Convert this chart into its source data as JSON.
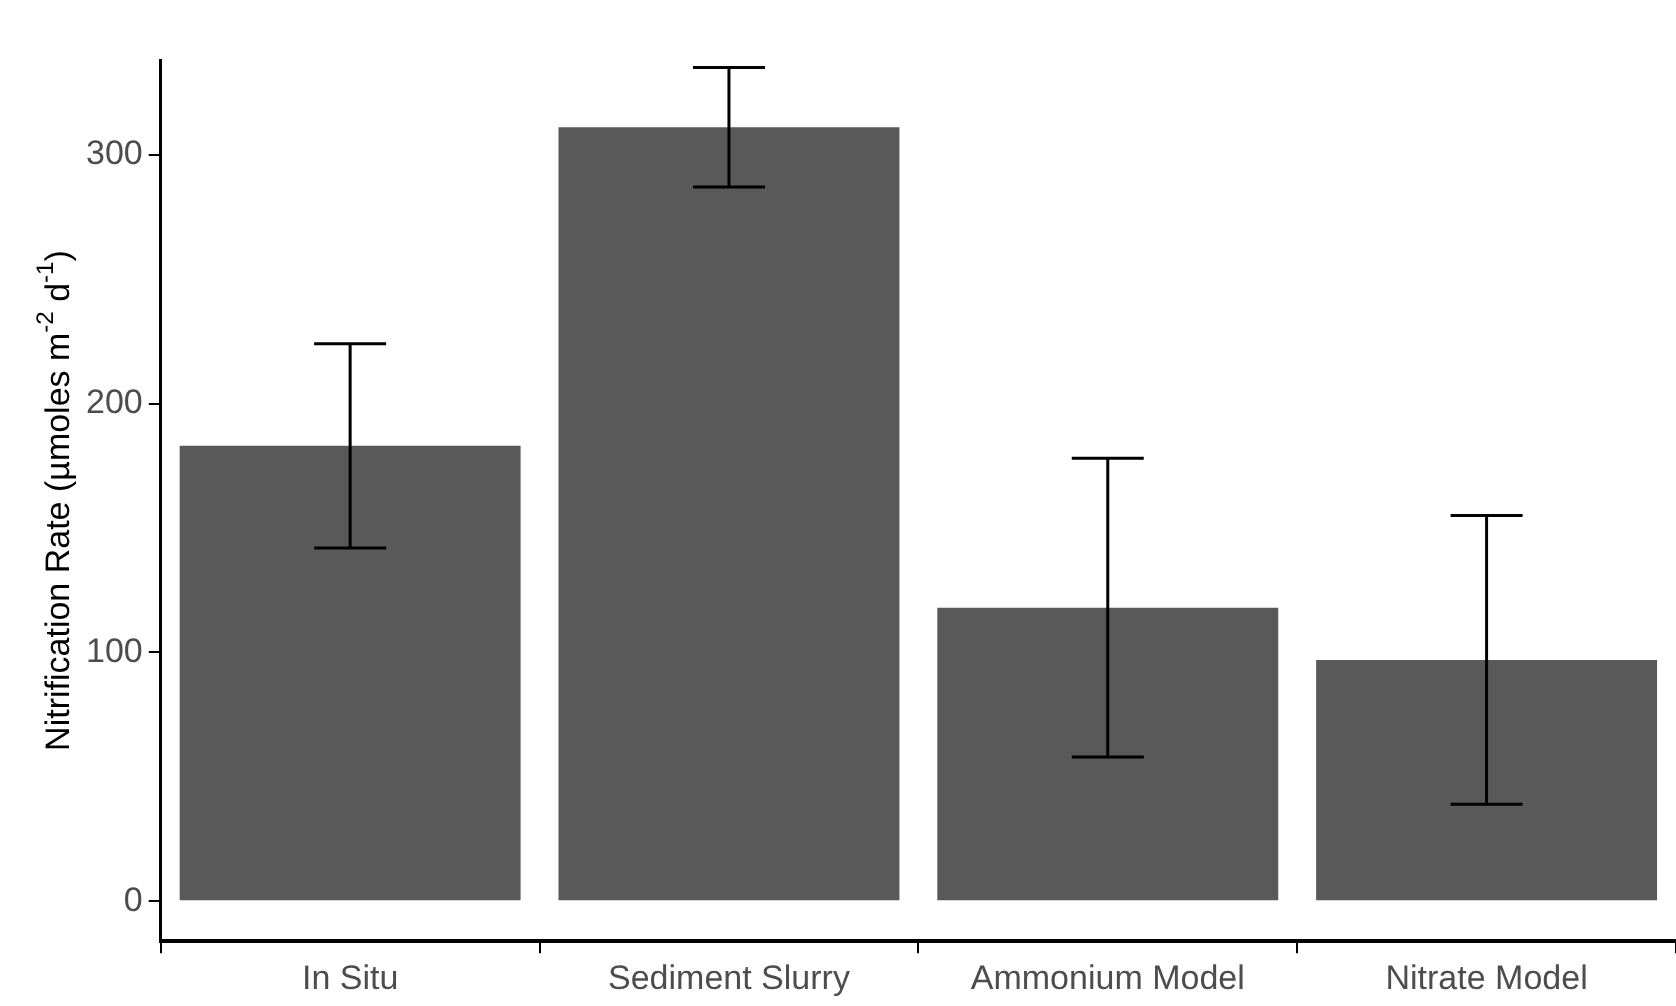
{
  "chart_data": {
    "type": "bar",
    "ylabel": "Nitrification Rate (µmoles m$^{-2}$ d$^{-1}$)",
    "categories": [
      "In Situ",
      "Sediment Slurry",
      "Ammonium Model",
      "Nitrate Model"
    ],
    "values": [
      183,
      311,
      118,
      97
    ],
    "errors": [
      41,
      24,
      60,
      58
    ],
    "color": "#595959",
    "ylim": [
      -16,
      338
    ],
    "yticks": [
      0,
      100,
      200,
      300
    ],
    "grid": false,
    "legend": false
  }
}
